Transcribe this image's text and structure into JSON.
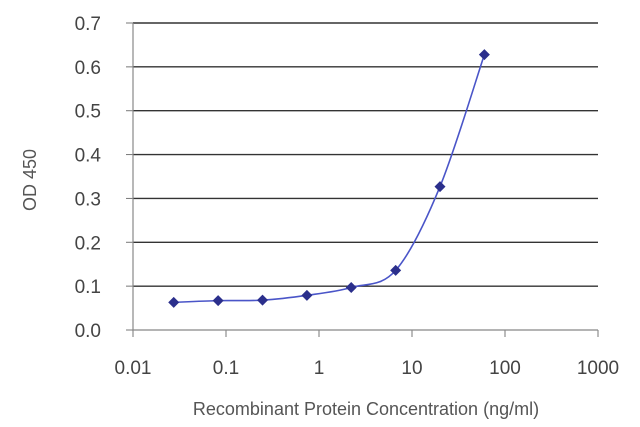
{
  "chart_data": {
    "type": "line",
    "title": "",
    "xlabel": "Recombinant Protein Concentration (ng/ml)",
    "ylabel": "OD 450",
    "x_scale": "log",
    "xlim": [
      0.01,
      1000
    ],
    "ylim": [
      0.0,
      0.7
    ],
    "x_ticks": [
      0.01,
      0.1,
      1,
      10,
      100,
      1000
    ],
    "x_tick_labels": [
      "0.01",
      "0.1",
      "1",
      "10",
      "100",
      "1000"
    ],
    "y_ticks": [
      0.0,
      0.1,
      0.2,
      0.3,
      0.4,
      0.5,
      0.6,
      0.7
    ],
    "y_tick_labels": [
      "0.0",
      "0.1",
      "0.2",
      "0.3",
      "0.4",
      "0.5",
      "0.6",
      "0.7"
    ],
    "grid": "horizontal",
    "legend": "none",
    "series": [
      {
        "color": "#2b2f8c",
        "marker": "diamond",
        "x": [
          0.0274,
          0.0823,
          0.247,
          0.741,
          2.22,
          6.67,
          20,
          60
        ],
        "y": [
          0.063,
          0.067,
          0.068,
          0.079,
          0.097,
          0.136,
          0.327,
          0.628
        ]
      }
    ]
  }
}
